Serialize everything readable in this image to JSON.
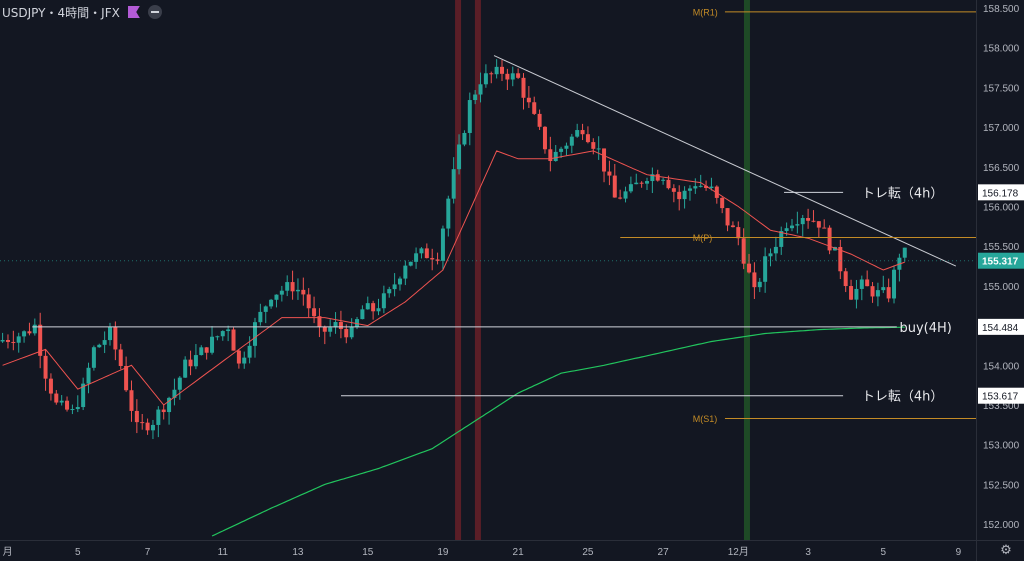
{
  "header": {
    "symbol": "USDJPY",
    "interval": "4時間",
    "exchange": "JFX",
    "separator": "・"
  },
  "current_price": "155.317",
  "chart_data": {
    "type": "candlestick",
    "ylim": [
      151.8,
      158.6
    ],
    "y_ticks": [
      152.0,
      152.5,
      153.0,
      153.5,
      154.0,
      154.5,
      155.0,
      155.5,
      156.0,
      156.5,
      157.0,
      157.5,
      158.0,
      158.5
    ],
    "y_tick_labels": [
      "152.000",
      "152.500",
      "153.000",
      "153.500",
      "154.000",
      "154.500",
      "155.000",
      "155.500",
      "156.000",
      "156.500",
      "157.000",
      "157.500",
      "158.000",
      "158.500"
    ],
    "x_tick_labels": [
      "月",
      "5",
      "7",
      "11",
      "13",
      "15",
      "19",
      "21",
      "25",
      "27",
      "12月",
      "3",
      "5",
      "9"
    ],
    "x_tick_positions": [
      0,
      14,
      27,
      41,
      55,
      68,
      82,
      96,
      109,
      123,
      137,
      150,
      164,
      178
    ],
    "anchors": [
      [
        0,
        154.3
      ],
      [
        5,
        154.4
      ],
      [
        7,
        154.5
      ],
      [
        9,
        153.9
      ],
      [
        11,
        153.5
      ],
      [
        14,
        153.4
      ],
      [
        16,
        153.7
      ],
      [
        18,
        154.2
      ],
      [
        21,
        154.4
      ],
      [
        23,
        154.0
      ],
      [
        26,
        153.2
      ],
      [
        29,
        153.3
      ],
      [
        33,
        153.7
      ],
      [
        35,
        154.0
      ],
      [
        37,
        154.1
      ],
      [
        40,
        154.3
      ],
      [
        43,
        154.5
      ],
      [
        45,
        154.0
      ],
      [
        48,
        154.5
      ],
      [
        51,
        154.9
      ],
      [
        55,
        155.0
      ],
      [
        57,
        154.9
      ],
      [
        60,
        154.4
      ],
      [
        63,
        154.5
      ],
      [
        66,
        154.4
      ],
      [
        68,
        154.7
      ],
      [
        70,
        154.7
      ],
      [
        73,
        154.9
      ],
      [
        76,
        155.3
      ],
      [
        79,
        155.4
      ],
      [
        82,
        155.4
      ],
      [
        84,
        156.1
      ],
      [
        86,
        156.7
      ],
      [
        88,
        157.3
      ],
      [
        90,
        157.6
      ],
      [
        94,
        157.7
      ],
      [
        97,
        157.6
      ],
      [
        100,
        157.1
      ],
      [
        103,
        156.6
      ],
      [
        106,
        156.8
      ],
      [
        109,
        157.0
      ],
      [
        112,
        156.7
      ],
      [
        115,
        156.1
      ],
      [
        118,
        156.2
      ],
      [
        121,
        156.4
      ],
      [
        124,
        156.4
      ],
      [
        127,
        156.1
      ],
      [
        130,
        156.3
      ],
      [
        133,
        156.2
      ],
      [
        136,
        155.8
      ],
      [
        138,
        155.6
      ],
      [
        141,
        154.9
      ],
      [
        143,
        155.3
      ],
      [
        147,
        155.8
      ],
      [
        150,
        155.9
      ],
      [
        153,
        155.8
      ],
      [
        156,
        155.4
      ],
      [
        159,
        154.9
      ],
      [
        161,
        155.0
      ],
      [
        164,
        154.9
      ],
      [
        166,
        154.9
      ],
      [
        168,
        155.4
      ]
    ],
    "sma20_anchors": [
      [
        0,
        154.0
      ],
      [
        8,
        154.2
      ],
      [
        14,
        153.7
      ],
      [
        24,
        154.0
      ],
      [
        30,
        153.5
      ],
      [
        36,
        153.8
      ],
      [
        44,
        154.2
      ],
      [
        52,
        154.6
      ],
      [
        60,
        154.6
      ],
      [
        68,
        154.5
      ],
      [
        75,
        154.8
      ],
      [
        82,
        155.2
      ],
      [
        86,
        155.8
      ],
      [
        92,
        156.7
      ],
      [
        96,
        156.6
      ],
      [
        102,
        156.6
      ],
      [
        110,
        156.7
      ],
      [
        120,
        156.4
      ],
      [
        130,
        156.3
      ],
      [
        137,
        156.0
      ],
      [
        143,
        155.7
      ],
      [
        150,
        155.6
      ],
      [
        158,
        155.4
      ],
      [
        164,
        155.2
      ],
      [
        168,
        155.3
      ]
    ],
    "sma200_anchors": [
      [
        39,
        151.85
      ],
      [
        50,
        152.2
      ],
      [
        60,
        152.5
      ],
      [
        70,
        152.7
      ],
      [
        80,
        152.95
      ],
      [
        88,
        153.3
      ],
      [
        96,
        153.65
      ],
      [
        104,
        153.9
      ],
      [
        112,
        154.0
      ],
      [
        122,
        154.15
      ],
      [
        132,
        154.3
      ],
      [
        142,
        154.4
      ],
      [
        152,
        154.45
      ],
      [
        160,
        154.47
      ],
      [
        168,
        154.48
      ]
    ],
    "trendline": [
      [
        92,
        157.9
      ],
      [
        178,
        155.25
      ]
    ],
    "vertical_bands": [
      {
        "x": 85.3,
        "color": "#5a1e27"
      },
      {
        "x": 89.0,
        "color": "#5a1e27"
      },
      {
        "x": 139.1,
        "color": "#1e4a26"
      }
    ],
    "levels": [
      {
        "label": "M(R1)",
        "price": 158.45,
        "x_start": 135,
        "color": "#c38b26",
        "label_at": 129,
        "label_above": 0
      },
      {
        "label": "M(P)",
        "price": 155.61,
        "x_start": 115.5,
        "color": "#c38b26",
        "label_at": 129,
        "label_above": 0
      },
      {
        "label": "M(S1)",
        "price": 153.33,
        "x_start": 135,
        "color": "#c38b26",
        "label_at": 129,
        "label_above": 0
      }
    ],
    "lines": [
      {
        "label": "トレ転（4h）",
        "price": 156.178,
        "tag": "156.178",
        "x_start": 146,
        "x_end": 157,
        "text_x": 160.5
      },
      {
        "label": "buy(4H)",
        "price": 154.484,
        "tag": "154.484",
        "x_start": 6,
        "x_end": 167,
        "text_x": 167.5
      },
      {
        "label": "トレ転（4h）",
        "price": 153.617,
        "tag": "153.617",
        "x_start": 63.5,
        "x_end": 157,
        "text_x": 160.5
      }
    ],
    "colors": {
      "up": "#26a69a",
      "down": "#ef5350",
      "sma20": "#ef5350",
      "sma200": "#22c55e",
      "trend": "#c9cbd2",
      "grid": "#1f2430",
      "price_tag": "#26a69a"
    }
  }
}
